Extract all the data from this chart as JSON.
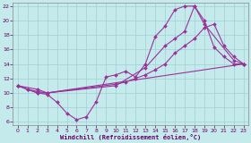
{
  "xlabel": "Windchill (Refroidissement éolien,°C)",
  "xlim": [
    -0.5,
    23.5
  ],
  "ylim": [
    5.5,
    22.5
  ],
  "xticks": [
    0,
    1,
    2,
    3,
    4,
    5,
    6,
    7,
    8,
    9,
    10,
    11,
    12,
    13,
    14,
    15,
    16,
    17,
    18,
    19,
    20,
    21,
    22,
    23
  ],
  "yticks": [
    6,
    8,
    10,
    12,
    14,
    16,
    18,
    20,
    22
  ],
  "background_color": "#c5eaec",
  "grid_color": "#a0d0d4",
  "line_color": "#993399",
  "lines": [
    {
      "x": [
        0,
        1,
        2,
        3,
        4,
        5,
        6,
        7,
        8,
        9,
        10,
        11,
        12,
        13,
        14,
        15,
        16,
        17,
        18,
        19,
        20,
        21,
        22,
        23
      ],
      "y": [
        11.0,
        10.5,
        10.0,
        9.8,
        8.7,
        7.2,
        6.3,
        6.7,
        8.8,
        12.2,
        12.5,
        13.0,
        12.2,
        14.0,
        17.8,
        19.2,
        21.5,
        22.0,
        22.0,
        20.0,
        16.3,
        15.0,
        14.0,
        14.0
      ]
    },
    {
      "x": [
        0,
        1,
        2,
        3,
        10,
        11,
        12,
        13,
        14,
        15,
        16,
        17,
        18,
        19,
        20,
        21,
        22,
        23
      ],
      "y": [
        11.0,
        10.5,
        10.2,
        10.0,
        11.2,
        11.5,
        12.0,
        12.5,
        13.2,
        14.0,
        15.5,
        16.5,
        17.5,
        19.0,
        19.5,
        16.5,
        15.0,
        14.0
      ]
    },
    {
      "x": [
        0,
        2,
        3,
        10,
        13,
        15,
        16,
        17,
        18,
        19,
        22,
        23
      ],
      "y": [
        11.0,
        10.5,
        10.0,
        11.0,
        13.5,
        16.5,
        17.5,
        18.5,
        22.0,
        19.5,
        14.5,
        14.0
      ]
    },
    {
      "x": [
        0,
        1,
        2,
        3,
        23
      ],
      "y": [
        11.0,
        10.5,
        10.0,
        10.0,
        14.0
      ]
    }
  ]
}
